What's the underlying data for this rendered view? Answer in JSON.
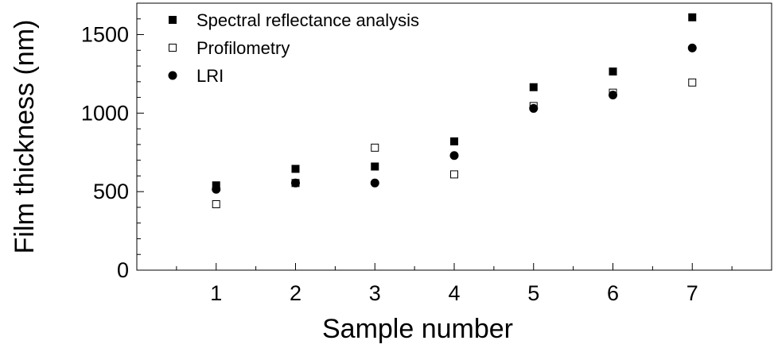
{
  "chart_data": {
    "type": "scatter",
    "title": "",
    "xlabel": "Sample number",
    "ylabel": "Film thickness (nm)",
    "xlim": [
      0,
      8
    ],
    "ylim": [
      0,
      1700
    ],
    "x_ticks": [
      1,
      2,
      3,
      4,
      5,
      6,
      7
    ],
    "y_ticks": [
      0,
      500,
      1000,
      1500
    ],
    "grid": false,
    "legend_position": "top-left",
    "series": [
      {
        "name": "Spectral reflectance analysis",
        "marker": "filled-square",
        "color": "#000000",
        "x": [
          1,
          2,
          3,
          4,
          5,
          6,
          7
        ],
        "y": [
          540,
          645,
          660,
          820,
          1165,
          1265,
          1610
        ]
      },
      {
        "name": "Profilometry",
        "marker": "open-square",
        "color": "#000000",
        "x": [
          1,
          2,
          3,
          4,
          5,
          6,
          7
        ],
        "y": [
          420,
          555,
          780,
          610,
          1045,
          1130,
          1195
        ]
      },
      {
        "name": "LRI",
        "marker": "filled-circle",
        "color": "#000000",
        "x": [
          1,
          2,
          3,
          4,
          5,
          6,
          7
        ],
        "y": [
          515,
          555,
          555,
          730,
          1030,
          1115,
          1415
        ]
      }
    ]
  }
}
